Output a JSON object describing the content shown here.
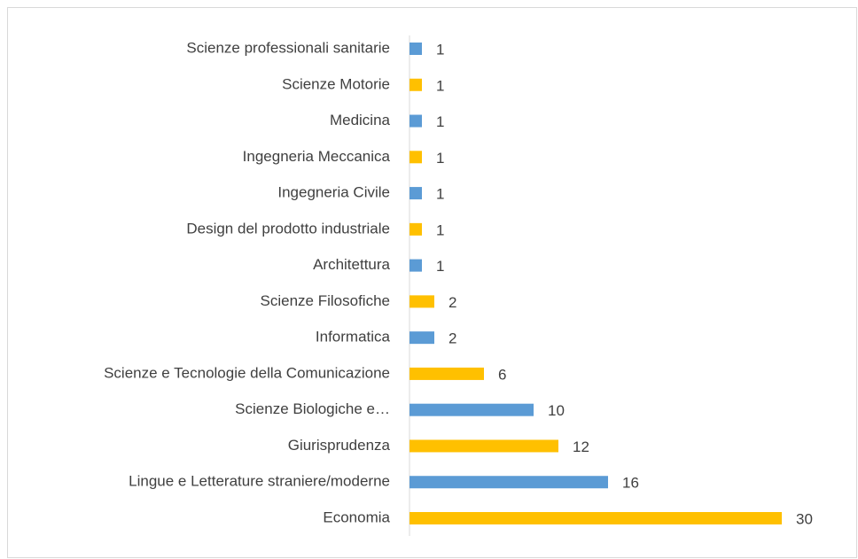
{
  "chart_data": {
    "type": "bar",
    "orientation": "horizontal",
    "categories": [
      "Scienze professionali sanitarie",
      "Scienze Motorie",
      "Medicina",
      "Ingegneria Meccanica",
      "Ingegneria  Civile",
      "Design del prodotto industriale",
      "Architettura",
      "Scienze Filosofiche",
      "Informatica",
      "Scienze e Tecnologie della Comunicazione",
      "Scienze Biologiche e…",
      "Giurisprudenza",
      "Lingue e Letterature straniere/moderne",
      "Economia"
    ],
    "values": [
      1,
      1,
      1,
      1,
      1,
      1,
      1,
      2,
      2,
      6,
      10,
      12,
      16,
      30
    ],
    "colors": [
      "#5b9bd5",
      "#ffc000",
      "#5b9bd5",
      "#ffc000",
      "#5b9bd5",
      "#ffc000",
      "#5b9bd5",
      "#ffc000",
      "#5b9bd5",
      "#ffc000",
      "#5b9bd5",
      "#ffc000",
      "#5b9bd5",
      "#ffc000"
    ]
  }
}
